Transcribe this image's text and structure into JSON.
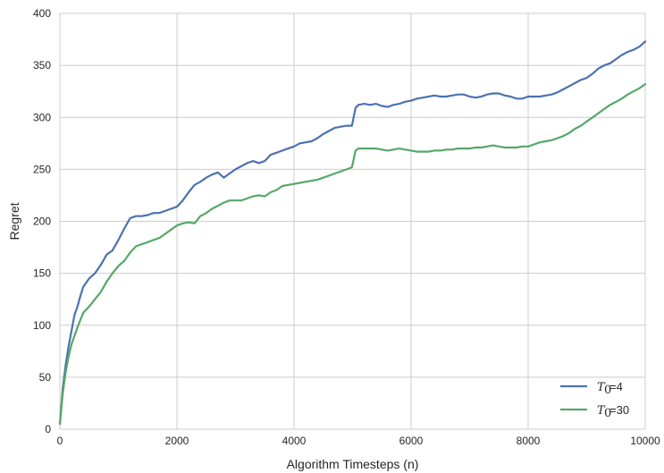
{
  "chart_data": {
    "type": "line",
    "title": "",
    "xlabel": "Algorithm Timesteps (n)",
    "ylabel": "Regret",
    "xlim": [
      0,
      10000
    ],
    "ylim": [
      0,
      400
    ],
    "xticks": [
      0,
      2000,
      4000,
      6000,
      8000,
      10000
    ],
    "yticks": [
      0,
      50,
      100,
      150,
      200,
      250,
      300,
      350,
      400
    ],
    "grid": true,
    "legend_position": "bottom-right",
    "series": [
      {
        "name": "T0=4",
        "legend_var": "T",
        "legend_sub": "0",
        "legend_val": "=4",
        "color": "#4c72b0",
        "x": [
          0,
          50,
          100,
          150,
          200,
          250,
          300,
          350,
          400,
          500,
          600,
          700,
          800,
          900,
          1000,
          1100,
          1200,
          1300,
          1400,
          1500,
          1600,
          1700,
          1800,
          1900,
          2000,
          2100,
          2200,
          2300,
          2400,
          2500,
          2600,
          2700,
          2800,
          2900,
          3000,
          3100,
          3200,
          3300,
          3400,
          3500,
          3600,
          3700,
          3800,
          3900,
          4000,
          4100,
          4200,
          4300,
          4400,
          4500,
          4600,
          4700,
          4800,
          4900,
          4990,
          5050,
          5100,
          5200,
          5300,
          5400,
          5500,
          5600,
          5700,
          5800,
          5900,
          6000,
          6100,
          6200,
          6300,
          6400,
          6500,
          6600,
          6700,
          6800,
          6900,
          7000,
          7100,
          7200,
          7300,
          7400,
          7500,
          7600,
          7700,
          7800,
          7900,
          8000,
          8100,
          8200,
          8300,
          8400,
          8500,
          8600,
          8700,
          8800,
          8900,
          9000,
          9100,
          9200,
          9300,
          9400,
          9500,
          9600,
          9700,
          9800,
          9900,
          10000
        ],
        "y": [
          5,
          40,
          62,
          80,
          95,
          110,
          118,
          128,
          137,
          145,
          150,
          158,
          168,
          172,
          182,
          193,
          203,
          205,
          205,
          206,
          208,
          208,
          210,
          212,
          214,
          220,
          228,
          235,
          238,
          242,
          245,
          247,
          242,
          246,
          250,
          253,
          256,
          258,
          256,
          258,
          264,
          266,
          268,
          270,
          272,
          275,
          276,
          277,
          280,
          284,
          287,
          290,
          291,
          292,
          292,
          309,
          312,
          313,
          312,
          313,
          311,
          310,
          312,
          313,
          315,
          316,
          318,
          319,
          320,
          321,
          320,
          320,
          321,
          322,
          322,
          320,
          319,
          320,
          322,
          323,
          323,
          321,
          320,
          318,
          318,
          320,
          320,
          320,
          321,
          322,
          324,
          327,
          330,
          333,
          336,
          338,
          342,
          347,
          350,
          352,
          356,
          360,
          363,
          365,
          368,
          373
        ]
      },
      {
        "name": "T0=30",
        "legend_var": "T",
        "legend_sub": "0",
        "legend_val": "=30",
        "color": "#55a868",
        "x": [
          0,
          50,
          100,
          150,
          200,
          250,
          300,
          350,
          400,
          500,
          600,
          700,
          800,
          900,
          1000,
          1100,
          1200,
          1300,
          1400,
          1500,
          1600,
          1700,
          1800,
          1900,
          2000,
          2100,
          2200,
          2300,
          2400,
          2500,
          2600,
          2700,
          2800,
          2900,
          3000,
          3100,
          3200,
          3300,
          3400,
          3500,
          3600,
          3700,
          3800,
          3900,
          4000,
          4100,
          4200,
          4300,
          4400,
          4500,
          4600,
          4700,
          4800,
          4900,
          4990,
          5050,
          5100,
          5200,
          5300,
          5400,
          5500,
          5600,
          5700,
          5800,
          5900,
          6000,
          6100,
          6200,
          6300,
          6400,
          6500,
          6600,
          6700,
          6800,
          6900,
          7000,
          7100,
          7200,
          7300,
          7400,
          7500,
          7600,
          7700,
          7800,
          7900,
          8000,
          8100,
          8200,
          8300,
          8400,
          8500,
          8600,
          8700,
          8800,
          8900,
          9000,
          9100,
          9200,
          9300,
          9400,
          9500,
          9600,
          9700,
          9800,
          9900,
          10000
        ],
        "y": [
          5,
          35,
          55,
          70,
          82,
          90,
          98,
          105,
          112,
          118,
          125,
          132,
          142,
          150,
          157,
          162,
          170,
          176,
          178,
          180,
          182,
          184,
          188,
          192,
          196,
          198,
          199,
          198,
          205,
          208,
          212,
          215,
          218,
          220,
          220,
          220,
          222,
          224,
          225,
          224,
          228,
          230,
          234,
          235,
          236,
          237,
          238,
          239,
          240,
          242,
          244,
          246,
          248,
          250,
          252,
          268,
          270,
          270,
          270,
          270,
          269,
          268,
          269,
          270,
          269,
          268,
          267,
          267,
          267,
          268,
          268,
          269,
          269,
          270,
          270,
          270,
          271,
          271,
          272,
          273,
          272,
          271,
          271,
          271,
          272,
          272,
          274,
          276,
          277,
          278,
          280,
          282,
          285,
          289,
          292,
          296,
          300,
          304,
          308,
          312,
          315,
          318,
          322,
          325,
          328,
          332
        ]
      }
    ]
  }
}
